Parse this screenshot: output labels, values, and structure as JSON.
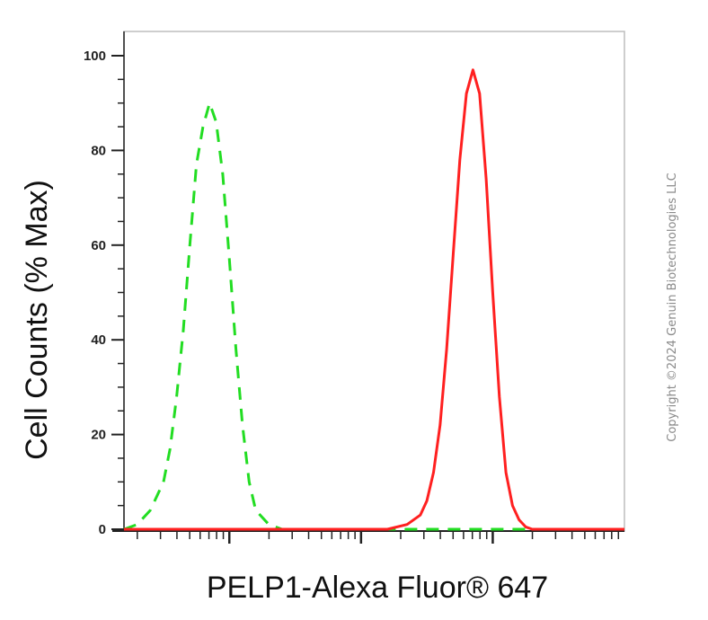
{
  "chart_data": {
    "type": "line",
    "title": "",
    "xlabel": "PELP1-Alexa Fluor® 647",
    "ylabel": "Cell Counts (% Max)",
    "ylim": [
      0,
      100
    ],
    "xscale": "log",
    "y_ticks": [
      "0",
      "20",
      "40",
      "60",
      "80",
      "100"
    ],
    "grid": false,
    "legend": "none",
    "series": [
      {
        "color": "#22dd22",
        "style": "dashed",
        "points": [
          [
            0.2,
            0
          ],
          [
            0.3,
            1
          ],
          [
            0.4,
            4
          ],
          [
            0.5,
            10
          ],
          [
            0.55,
            17
          ],
          [
            0.6,
            28
          ],
          [
            0.65,
            42
          ],
          [
            0.7,
            60
          ],
          [
            0.75,
            77
          ],
          [
            0.8,
            85
          ],
          [
            0.85,
            90
          ],
          [
            0.9,
            86
          ],
          [
            0.95,
            75
          ],
          [
            1.0,
            57
          ],
          [
            1.05,
            38
          ],
          [
            1.1,
            22
          ],
          [
            1.15,
            10
          ],
          [
            1.2,
            4
          ],
          [
            1.3,
            1
          ],
          [
            1.4,
            0
          ],
          [
            2.0,
            0
          ],
          [
            3.0,
            0
          ],
          [
            4.0,
            0
          ]
        ]
      },
      {
        "color": "#ff2020",
        "style": "solid",
        "points": [
          [
            0.2,
            0
          ],
          [
            1.5,
            0
          ],
          [
            2.0,
            0
          ],
          [
            2.2,
            0
          ],
          [
            2.35,
            1
          ],
          [
            2.45,
            3
          ],
          [
            2.5,
            6
          ],
          [
            2.55,
            12
          ],
          [
            2.6,
            22
          ],
          [
            2.65,
            38
          ],
          [
            2.7,
            58
          ],
          [
            2.75,
            78
          ],
          [
            2.8,
            92
          ],
          [
            2.85,
            97
          ],
          [
            2.9,
            92
          ],
          [
            2.95,
            74
          ],
          [
            3.0,
            50
          ],
          [
            3.05,
            28
          ],
          [
            3.1,
            12
          ],
          [
            3.15,
            5
          ],
          [
            3.2,
            2
          ],
          [
            3.25,
            0.5
          ],
          [
            3.3,
            0
          ],
          [
            4.0,
            0
          ]
        ]
      }
    ]
  },
  "copyright": "Copyright ©2024 Genuin Biotechnologies LLC"
}
